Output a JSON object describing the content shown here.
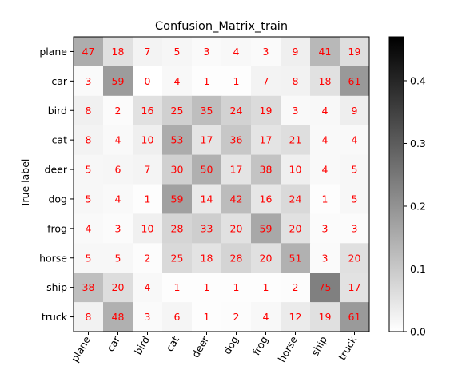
{
  "chart_data": {
    "type": "heatmap",
    "title": "Confusion_Matrix_train",
    "ylabel": "True label",
    "xlabel": "",
    "rows": [
      "plane",
      "car",
      "bird",
      "cat",
      "deer",
      "dog",
      "frog",
      "horse",
      "ship",
      "truck"
    ],
    "columns": [
      "plane",
      "car",
      "bird",
      "cat",
      "deer",
      "dog",
      "frog",
      "horse",
      "ship",
      "truck"
    ],
    "values": [
      [
        47,
        18,
        7,
        5,
        3,
        4,
        3,
        9,
        41,
        19
      ],
      [
        3,
        59,
        0,
        4,
        1,
        1,
        7,
        8,
        18,
        61
      ],
      [
        8,
        2,
        16,
        25,
        35,
        24,
        19,
        3,
        4,
        9
      ],
      [
        8,
        4,
        10,
        53,
        17,
        36,
        17,
        21,
        4,
        4
      ],
      [
        5,
        6,
        7,
        30,
        50,
        17,
        38,
        10,
        4,
        5
      ],
      [
        5,
        4,
        1,
        59,
        14,
        42,
        16,
        24,
        1,
        5
      ],
      [
        4,
        3,
        10,
        28,
        33,
        20,
        59,
        20,
        3,
        3
      ],
      [
        5,
        5,
        2,
        25,
        18,
        28,
        20,
        51,
        3,
        20
      ],
      [
        38,
        20,
        4,
        1,
        1,
        1,
        1,
        2,
        75,
        17
      ],
      [
        8,
        48,
        3,
        6,
        1,
        2,
        4,
        12,
        19,
        61
      ]
    ],
    "colormap": "greys",
    "cell_text_color": "#ff0000",
    "colorbar": {
      "min": 0.0,
      "max": 0.47,
      "ticks": [
        0.0,
        0.1,
        0.2,
        0.3,
        0.4
      ],
      "tick_labels": [
        "0.0",
        "0.1",
        "0.2",
        "0.3",
        "0.4"
      ]
    }
  }
}
